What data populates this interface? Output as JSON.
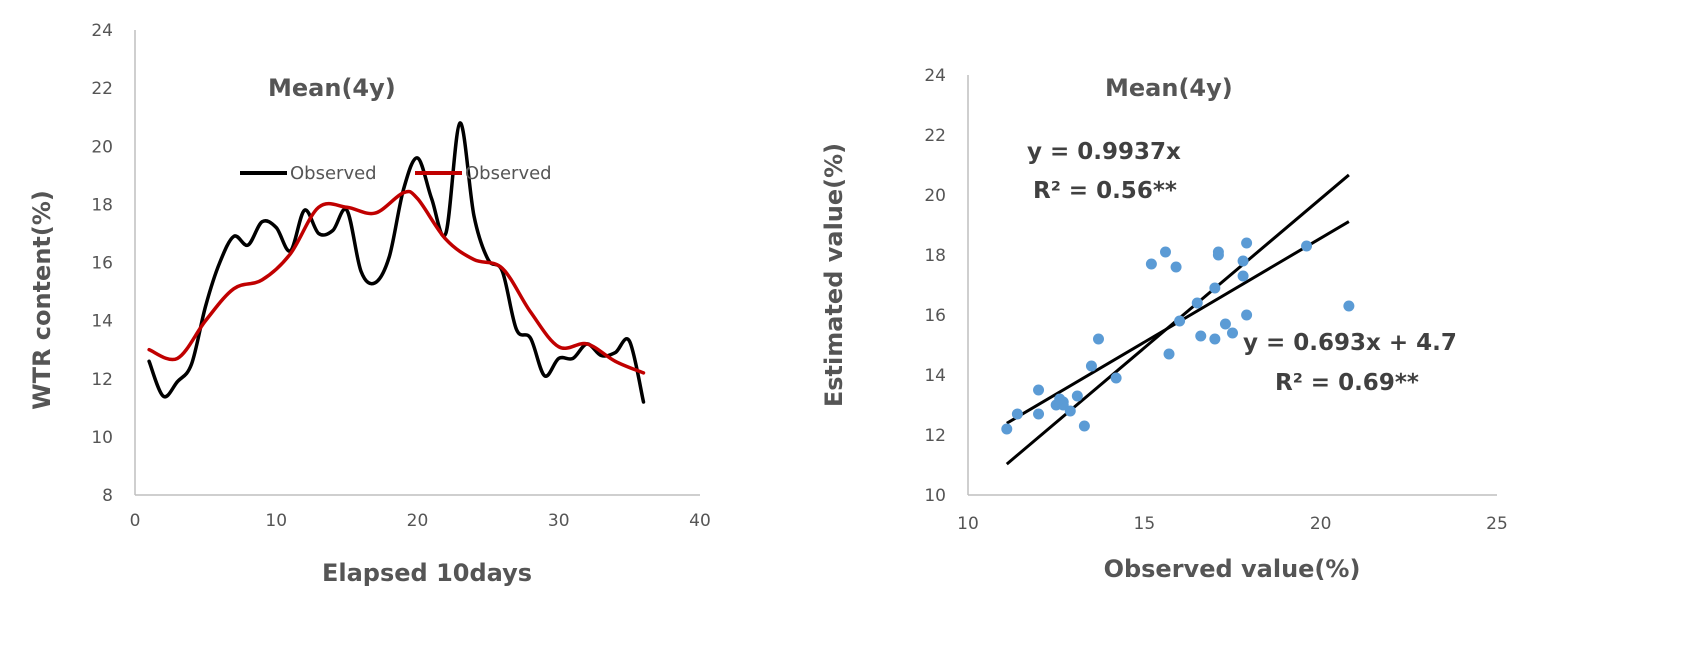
{
  "chart_data": [
    {
      "type": "line",
      "title": "Mean(4y)",
      "xlabel": "Elapsed 10days",
      "ylabel": "WTR content(%)",
      "xlim": [
        0,
        40
      ],
      "ylim": [
        8,
        24
      ],
      "x_ticks": [
        "0",
        "10",
        "20",
        "30",
        "40"
      ],
      "y_ticks": [
        "8",
        "10",
        "12",
        "14",
        "16",
        "18",
        "20",
        "22",
        "24"
      ],
      "grid": false,
      "legend_position": "top-center",
      "series": [
        {
          "name": "Observed",
          "color": "#000000",
          "points": [
            [
              1,
              12.6
            ],
            [
              2,
              11.4
            ],
            [
              3,
              11.9
            ],
            [
              4,
              12.5
            ],
            [
              5,
              14.5
            ],
            [
              6,
              16.0
            ],
            [
              7,
              16.9
            ],
            [
              8,
              16.6
            ],
            [
              9,
              17.4
            ],
            [
              10,
              17.2
            ],
            [
              11,
              16.4
            ],
            [
              12,
              17.8
            ],
            [
              13,
              17.0
            ],
            [
              14,
              17.1
            ],
            [
              15,
              17.8
            ],
            [
              16,
              15.7
            ],
            [
              17,
              15.3
            ],
            [
              18,
              16.2
            ],
            [
              19,
              18.5
            ],
            [
              20,
              19.6
            ],
            [
              21,
              18.2
            ],
            [
              22,
              17.0
            ],
            [
              23,
              20.8
            ],
            [
              24,
              17.6
            ],
            [
              25,
              16.1
            ],
            [
              26,
              15.7
            ],
            [
              27,
              13.7
            ],
            [
              28,
              13.4
            ],
            [
              29,
              12.1
            ],
            [
              30,
              12.7
            ],
            [
              31,
              12.7
            ],
            [
              32,
              13.2
            ],
            [
              33,
              12.8
            ],
            [
              34,
              12.9
            ],
            [
              35,
              13.3
            ],
            [
              36,
              11.2
            ]
          ]
        },
        {
          "name": "Observed",
          "color": "#c00000",
          "points": [
            [
              1,
              13.0
            ],
            [
              3,
              12.7
            ],
            [
              5,
              14.0
            ],
            [
              7,
              15.1
            ],
            [
              9,
              15.4
            ],
            [
              11,
              16.3
            ],
            [
              13,
              17.9
            ],
            [
              15,
              17.9
            ],
            [
              17,
              17.7
            ],
            [
              19,
              18.4
            ],
            [
              20,
              18.2
            ],
            [
              22,
              16.8
            ],
            [
              24,
              16.1
            ],
            [
              26,
              15.8
            ],
            [
              28,
              14.3
            ],
            [
              30,
              13.1
            ],
            [
              32,
              13.2
            ],
            [
              34,
              12.6
            ],
            [
              36,
              12.2
            ]
          ]
        }
      ]
    },
    {
      "type": "scatter",
      "title": "Mean(4y)",
      "xlabel": "Observed value(%)",
      "ylabel": "Estimated value(%)",
      "xlim": [
        10,
        25
      ],
      "ylim": [
        10,
        24
      ],
      "x_ticks": [
        "10",
        "15",
        "20",
        "25"
      ],
      "y_ticks": [
        "10",
        "12",
        "14",
        "16",
        "18",
        "20",
        "22",
        "24"
      ],
      "grid": false,
      "point_color": "#5b9bd5",
      "points": [
        [
          11.1,
          12.2
        ],
        [
          11.4,
          12.7
        ],
        [
          12.0,
          13.5
        ],
        [
          12.0,
          12.7
        ],
        [
          12.5,
          13.0
        ],
        [
          12.6,
          13.1
        ],
        [
          12.7,
          13.1
        ],
        [
          12.7,
          13.0
        ],
        [
          12.6,
          13.2
        ],
        [
          12.9,
          12.8
        ],
        [
          13.1,
          13.3
        ],
        [
          13.3,
          12.3
        ],
        [
          13.5,
          14.3
        ],
        [
          13.7,
          15.2
        ],
        [
          14.2,
          13.9
        ],
        [
          15.2,
          17.7
        ],
        [
          15.6,
          18.1
        ],
        [
          15.7,
          14.7
        ],
        [
          15.9,
          17.6
        ],
        [
          16.0,
          15.8
        ],
        [
          16.5,
          16.4
        ],
        [
          16.6,
          15.3
        ],
        [
          17.0,
          15.2
        ],
        [
          17.0,
          16.9
        ],
        [
          17.1,
          18.0
        ],
        [
          17.1,
          18.1
        ],
        [
          17.3,
          15.7
        ],
        [
          17.5,
          15.4
        ],
        [
          17.8,
          17.8
        ],
        [
          17.8,
          17.3
        ],
        [
          17.9,
          18.4
        ],
        [
          17.9,
          16.0
        ],
        [
          19.6,
          18.3
        ],
        [
          20.8,
          16.3
        ]
      ],
      "trendlines": [
        {
          "equation": "y = 0.9937x",
          "r2": "R² = 0.56**",
          "slope": 0.9937,
          "intercept": 0,
          "x_range": [
            11.1,
            20.8
          ]
        },
        {
          "equation": "y = 0.693x + 4.7",
          "r2": "R² = 0.69**",
          "slope": 0.693,
          "intercept": 4.7,
          "x_range": [
            11.1,
            20.8
          ]
        }
      ]
    }
  ]
}
